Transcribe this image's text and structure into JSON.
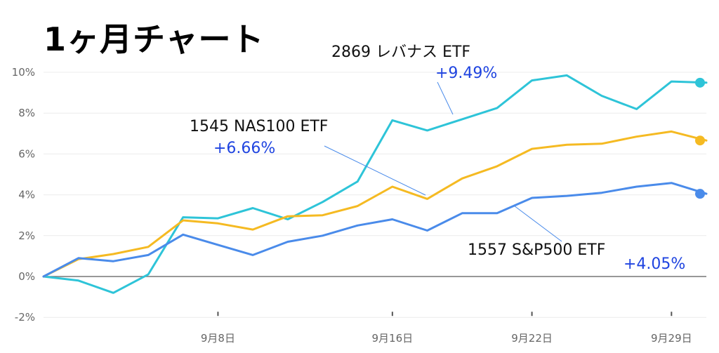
{
  "title": "1ヶ月チャート",
  "chart_data": {
    "type": "line",
    "title": "1ヶ月チャート",
    "xlabel": "",
    "ylabel": "",
    "y_unit": "%",
    "ylim": [
      -2,
      10.5
    ],
    "y_ticks": [
      "10%",
      "8%",
      "6%",
      "4%",
      "2%",
      "0%",
      "-2%"
    ],
    "y_tick_values": [
      10,
      8,
      6,
      4,
      2,
      0,
      -2
    ],
    "x_tick_labels": [
      "9月8日",
      "9月16日",
      "9月22日",
      "9月29日"
    ],
    "x_tick_index": [
      5,
      10,
      14,
      18
    ],
    "grid": true,
    "series": [
      {
        "name": "2869 レバナス ETF",
        "color": "#2EC4D8",
        "end_label": "+9.49%",
        "values": [
          0.0,
          -0.2,
          -0.8,
          0.1,
          2.9,
          2.85,
          3.35,
          2.8,
          3.65,
          4.65,
          7.65,
          7.15,
          7.7,
          8.25,
          9.6,
          9.85,
          8.85,
          8.2,
          9.55,
          9.49
        ]
      },
      {
        "name": "1545 NAS100 ETF",
        "color": "#F5BA22",
        "end_label": "+6.66%",
        "values": [
          0.0,
          0.85,
          1.1,
          1.45,
          2.75,
          2.6,
          2.3,
          2.95,
          3.0,
          3.45,
          4.4,
          3.8,
          4.8,
          5.4,
          6.25,
          6.45,
          6.5,
          6.85,
          7.1,
          6.66
        ]
      },
      {
        "name": "1557 S&P500 ETF",
        "color": "#4A8BEA",
        "end_label": "+4.05%",
        "values": [
          0.0,
          0.9,
          0.75,
          1.05,
          2.05,
          1.55,
          1.05,
          1.7,
          2.0,
          2.5,
          2.8,
          2.25,
          3.1,
          3.1,
          3.85,
          3.95,
          4.1,
          4.4,
          4.58,
          4.05
        ]
      }
    ]
  }
}
